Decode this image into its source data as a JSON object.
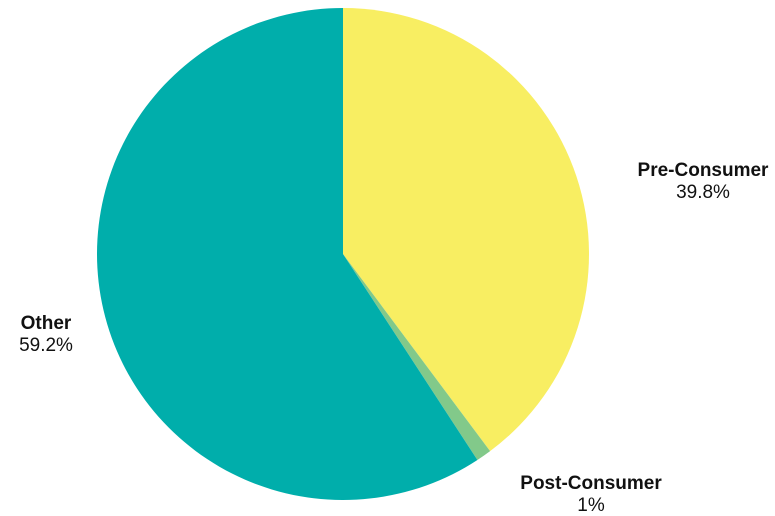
{
  "chart_data": {
    "type": "pie",
    "title": "",
    "slices": [
      {
        "name": "Pre-Consumer",
        "value": 39.8,
        "label": "39.8%",
        "color": "#f8ee62"
      },
      {
        "name": "Post-Consumer",
        "value": 1.0,
        "label": "1%",
        "color": "#82c98a"
      },
      {
        "name": "Other",
        "value": 59.2,
        "label": "59.2%",
        "color": "#00aeab"
      }
    ],
    "start_angle": "12 o'clock",
    "direction": "clockwise",
    "legend": "none"
  }
}
